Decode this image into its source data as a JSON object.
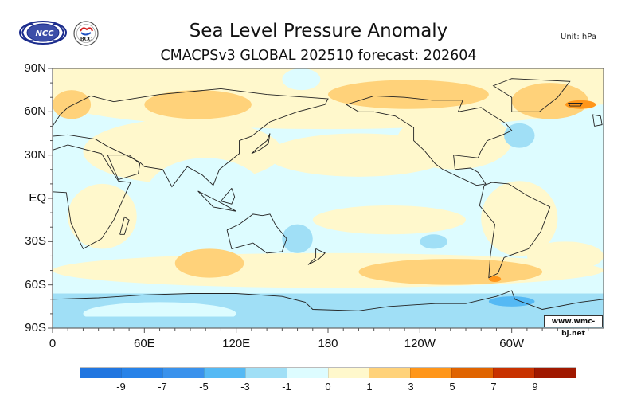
{
  "header": {
    "title": "Sea Level Pressure Anomaly",
    "subtitle": "CMACPSv3 GLOBAL 202510 forecast: 202604",
    "unit": "Unit: hPa",
    "logos": [
      {
        "name": "ncc-logo",
        "text": "NCC"
      },
      {
        "name": "bcc-logo",
        "text": "BCC"
      }
    ]
  },
  "credit": "www.wmc-bj.net",
  "colors": {
    "land_outline": "#222222",
    "frame": "#666666"
  },
  "chart_data": {
    "type": "heatmap",
    "title": "Sea Level Pressure Anomaly",
    "subtitle": "CMACPSv3 GLOBAL 202510 forecast: 202604",
    "unit": "hPa",
    "projection": "cylindrical equidistant",
    "xlim": [
      0,
      360
    ],
    "ylim": [
      -90,
      90
    ],
    "x_ticks": [
      {
        "value": 0,
        "label": "0"
      },
      {
        "value": 60,
        "label": "60E"
      },
      {
        "value": 120,
        "label": "120E"
      },
      {
        "value": 180,
        "label": "180"
      },
      {
        "value": 240,
        "label": "120W"
      },
      {
        "value": 300,
        "label": "60W"
      }
    ],
    "y_ticks": [
      {
        "value": 90,
        "label": "90N"
      },
      {
        "value": 60,
        "label": "60N"
      },
      {
        "value": 30,
        "label": "30N"
      },
      {
        "value": 0,
        "label": "EQ"
      },
      {
        "value": -30,
        "label": "30S"
      },
      {
        "value": -60,
        "label": "60S"
      },
      {
        "value": -90,
        "label": "90S"
      }
    ],
    "colorbar": {
      "labels": [
        "-9",
        "-7",
        "-5",
        "-3",
        "-1",
        "0",
        "1",
        "3",
        "5",
        "7",
        "9"
      ],
      "colors": [
        "#2176e0",
        "#2782e8",
        "#3a92ec",
        "#55b9f4",
        "#a0dff6",
        "#ddfcff",
        "#fff8cc",
        "#ffd27a",
        "#ff961a",
        "#e06400",
        "#c83200",
        "#a01800"
      ]
    },
    "background_level": "-1 to 0",
    "regions": [
      {
        "desc": "Northern Eurasia / Siberia positive",
        "level": "1 to 3",
        "lon": [
          60,
          130
        ],
        "lat": [
          55,
          75
        ]
      },
      {
        "desc": "Scandinavia / N Atlantic positive",
        "level": "1 to 3",
        "lon": [
          0,
          25
        ],
        "lat": [
          55,
          75
        ]
      },
      {
        "desc": "Arctic Canada / Alaska positive",
        "level": "1 to 3",
        "lon": [
          180,
          285
        ],
        "lat": [
          62,
          82
        ]
      },
      {
        "desc": "Greenland / Iceland positive",
        "level": "1 to 3",
        "lon": [
          300,
          350
        ],
        "lat": [
          55,
          80
        ]
      },
      {
        "desc": "Iceland max",
        "level": "3 to 5",
        "lon": [
          335,
          355
        ],
        "lat": [
          62,
          68
        ]
      },
      {
        "desc": "Labrador Sea / NW Atlantic negative",
        "level": "-3 to -1",
        "lon": [
          295,
          315
        ],
        "lat": [
          35,
          52
        ]
      },
      {
        "desc": "South Indian Ocean positive",
        "level": "1 to 3",
        "lon": [
          80,
          125
        ],
        "lat": [
          -55,
          -35
        ]
      },
      {
        "desc": "South Pacific positive band",
        "level": "1 to 3",
        "lon": [
          200,
          320
        ],
        "lat": [
          -60,
          -42
        ]
      },
      {
        "desc": "Drake Passage max",
        "level": "3 to 5",
        "lon": [
          285,
          293
        ],
        "lat": [
          -58,
          -54
        ]
      },
      {
        "desc": "South Pacific negative",
        "level": "-3 to -1",
        "lon": [
          240,
          258
        ],
        "lat": [
          -35,
          -25
        ]
      },
      {
        "desc": "East Australia / Tasman negative",
        "level": "-3 to -1",
        "lon": [
          150,
          170
        ],
        "lat": [
          -38,
          -18
        ]
      },
      {
        "desc": "Antarctic negative",
        "level": "-3 to -1",
        "lon": [
          0,
          360
        ],
        "lat": [
          -90,
          -66
        ]
      },
      {
        "desc": "Bellingshausen Sea min",
        "level": "-5 to -3",
        "lon": [
          285,
          315
        ],
        "lat": [
          -75,
          -68
        ]
      }
    ]
  }
}
